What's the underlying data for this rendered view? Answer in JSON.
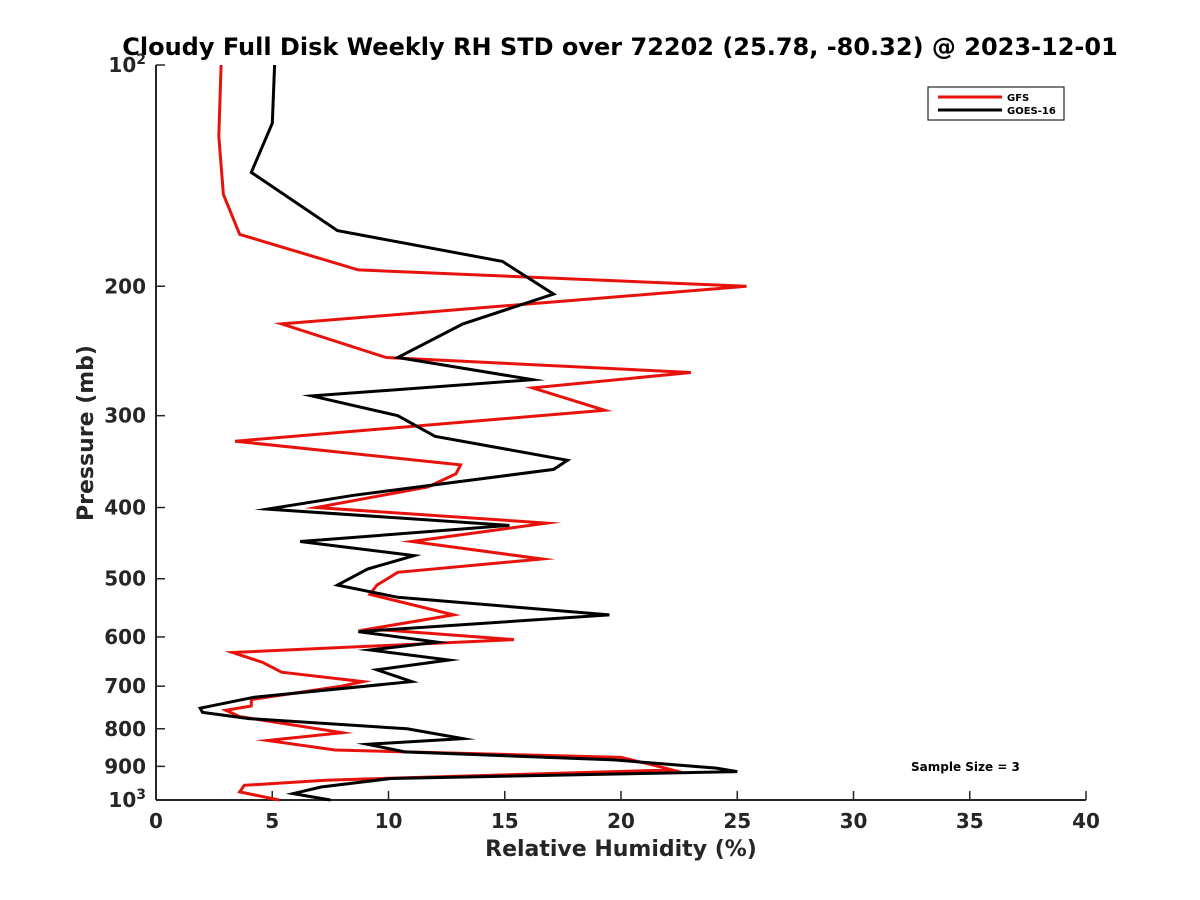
{
  "chart_data": {
    "type": "line",
    "title": "Cloudy Full Disk Weekly RH STD over 72202 (25.78, -80.32) @ 2023-12-01",
    "xlabel": "Relative Humidity (%)",
    "ylabel": "Pressure (mb)",
    "xlim": [
      0,
      40
    ],
    "ylim": [
      100,
      1000
    ],
    "y_scale": "log",
    "y_reversed": true,
    "x_ticks": [
      "0",
      "5",
      "10",
      "15",
      "20",
      "25",
      "30",
      "35",
      "40"
    ],
    "y_ticks": [
      {
        "value": 100,
        "base": "10",
        "exp": "2"
      },
      {
        "value": 200,
        "label": "200"
      },
      {
        "value": 300,
        "label": "300"
      },
      {
        "value": 400,
        "label": "400"
      },
      {
        "value": 500,
        "label": "500"
      },
      {
        "value": 600,
        "label": "600"
      },
      {
        "value": 700,
        "label": "700"
      },
      {
        "value": 800,
        "label": "800"
      },
      {
        "value": 900,
        "label": "900"
      },
      {
        "value": 1000,
        "base": "10",
        "exp": "3"
      }
    ],
    "grid": false,
    "legend_position": "top-right",
    "annotation": "Sample Size = 3",
    "series": [
      {
        "name": "GFS",
        "color": "#e8120c",
        "points": [
          [
            2.8,
            100
          ],
          [
            2.7,
            125
          ],
          [
            2.9,
            150
          ],
          [
            3.6,
            170
          ],
          [
            8.7,
            190
          ],
          [
            25.4,
            200
          ],
          [
            5.4,
            225
          ],
          [
            9.9,
            250
          ],
          [
            23.0,
            262
          ],
          [
            16.2,
            275
          ],
          [
            19.3,
            295
          ],
          [
            3.4,
            325
          ],
          [
            13.1,
            350
          ],
          [
            12.9,
            360
          ],
          [
            11.7,
            375
          ],
          [
            6.9,
            400
          ],
          [
            16.8,
            420
          ],
          [
            11.0,
            445
          ],
          [
            16.6,
            470
          ],
          [
            10.4,
            490
          ],
          [
            9.5,
            510
          ],
          [
            9.2,
            525
          ],
          [
            12.8,
            560
          ],
          [
            9.2,
            585
          ],
          [
            15.4,
            605
          ],
          [
            3.3,
            630
          ],
          [
            4.6,
            650
          ],
          [
            5.4,
            670
          ],
          [
            8.9,
            690
          ],
          [
            8.0,
            700
          ],
          [
            4.1,
            730
          ],
          [
            4.1,
            745
          ],
          [
            3.0,
            755
          ],
          [
            3.6,
            770
          ],
          [
            8.0,
            810
          ],
          [
            4.8,
            830
          ],
          [
            7.7,
            855
          ],
          [
            20.0,
            875
          ],
          [
            21.3,
            895
          ],
          [
            22.2,
            910
          ],
          [
            7.3,
            940
          ],
          [
            3.8,
            955
          ],
          [
            3.6,
            975
          ],
          [
            5.3,
            1000
          ]
        ]
      },
      {
        "name": "GOES-16",
        "color": "#000000",
        "points": [
          [
            5.1,
            100
          ],
          [
            5.0,
            120
          ],
          [
            4.1,
            140
          ],
          [
            7.8,
            168
          ],
          [
            14.9,
            185
          ],
          [
            17.1,
            205
          ],
          [
            13.2,
            225
          ],
          [
            10.4,
            250
          ],
          [
            16.2,
            268
          ],
          [
            6.7,
            282
          ],
          [
            10.4,
            300
          ],
          [
            12.0,
            320
          ],
          [
            17.7,
            345
          ],
          [
            17.1,
            355
          ],
          [
            8.5,
            385
          ],
          [
            4.8,
            402
          ],
          [
            15.2,
            423
          ],
          [
            6.2,
            445
          ],
          [
            11.1,
            465
          ],
          [
            9.1,
            485
          ],
          [
            7.8,
            510
          ],
          [
            10.4,
            530
          ],
          [
            19.5,
            560
          ],
          [
            8.7,
            590
          ],
          [
            12.1,
            610
          ],
          [
            9.2,
            625
          ],
          [
            12.6,
            645
          ],
          [
            9.5,
            665
          ],
          [
            11.0,
            690
          ],
          [
            4.2,
            725
          ],
          [
            1.9,
            750
          ],
          [
            2.0,
            760
          ],
          [
            4.0,
            775
          ],
          [
            10.8,
            800
          ],
          [
            13.2,
            825
          ],
          [
            9.1,
            840
          ],
          [
            10.7,
            860
          ],
          [
            19.7,
            882
          ],
          [
            24.1,
            905
          ],
          [
            25.0,
            915
          ],
          [
            10.1,
            935
          ],
          [
            7.1,
            960
          ],
          [
            5.9,
            980
          ],
          [
            7.5,
            1000
          ]
        ]
      }
    ]
  }
}
